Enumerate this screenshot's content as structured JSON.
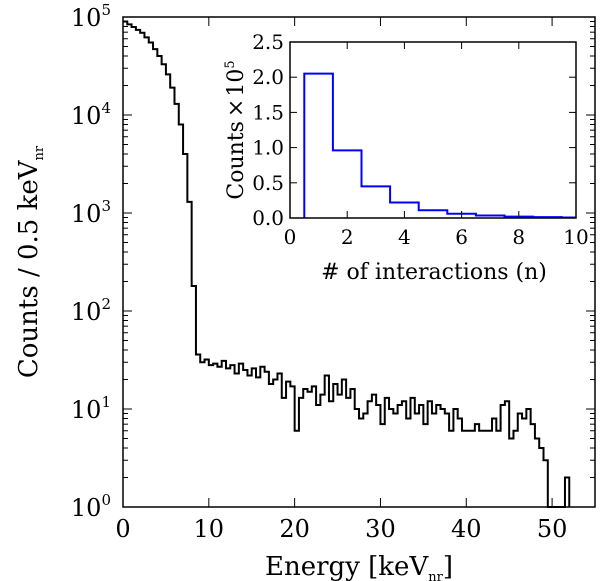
{
  "chart_data": [
    {
      "type": "step",
      "panel": "main",
      "xlabel": "Energy [keV",
      "xlabel_sub": "nr",
      "xlabel_suffix": "]",
      "ylabel": "Counts / 0.5 keV",
      "ylabel_sub": "nr",
      "xlim": [
        0,
        55
      ],
      "ylim": [
        1,
        100000
      ],
      "yscale": "log",
      "bin_width": 0.5,
      "x_ticks": [
        0,
        10,
        20,
        30,
        40,
        50
      ],
      "x_tick_labels": [
        "0",
        "10",
        "20",
        "30",
        "40",
        "50"
      ],
      "y_ticks": [
        1,
        10,
        100,
        1000,
        10000,
        100000
      ],
      "y_tick_base": "10",
      "y_tick_exponents": [
        "0",
        "1",
        "2",
        "3",
        "4",
        "5"
      ],
      "line_color": "#000000",
      "grid": false,
      "x_bin_edges": [
        0,
        0.5,
        1,
        1.5,
        2,
        2.5,
        3,
        3.5,
        4,
        4.5,
        5,
        5.5,
        6,
        6.5,
        7,
        7.5,
        8,
        8.5,
        9,
        9.5,
        10,
        10.5,
        11,
        11.5,
        12,
        12.5,
        13,
        13.5,
        14,
        14.5,
        15,
        15.5,
        16,
        16.5,
        17,
        17.5,
        18,
        18.5,
        19,
        19.5,
        20,
        20.5,
        21,
        21.5,
        22,
        22.5,
        23,
        23.5,
        24,
        24.5,
        25,
        25.5,
        26,
        26.5,
        27,
        27.5,
        28,
        28.5,
        29,
        29.5,
        30,
        30.5,
        31,
        31.5,
        32,
        32.5,
        33,
        33.5,
        34,
        34.5,
        35,
        35.5,
        36,
        36.5,
        37,
        37.5,
        38,
        38.5,
        39,
        39.5,
        40,
        40.5,
        41,
        41.5,
        42,
        42.5,
        43,
        43.5,
        44,
        44.5,
        45,
        45.5,
        46,
        46.5,
        47,
        47.5,
        48,
        48.5,
        49,
        49.5,
        50,
        50.5,
        51,
        51.5,
        52
      ],
      "values": [
        90000,
        84000,
        79000,
        74000,
        69000,
        62000,
        55000,
        47000,
        40000,
        33000,
        26000,
        19000,
        13000,
        8000,
        4000,
        1300,
        180,
        36,
        30,
        32,
        28,
        29,
        27,
        31,
        26,
        28,
        23,
        29,
        25,
        22,
        26,
        21,
        27,
        24,
        18,
        20,
        23,
        13,
        19,
        17,
        6,
        13,
        16,
        15,
        17,
        11,
        14,
        22,
        12,
        18,
        14,
        20,
        13,
        16,
        10,
        8,
        9,
        12,
        14,
        11,
        7,
        13,
        10,
        9,
        11,
        12,
        8,
        13,
        9,
        11,
        7,
        12,
        9,
        11,
        10,
        9,
        6,
        10,
        8,
        6,
        6,
        6,
        7,
        6,
        6,
        6,
        8,
        6,
        11,
        12,
        5,
        6,
        9,
        8,
        10,
        7,
        5,
        4,
        3,
        1,
        1,
        1,
        1,
        2
      ]
    },
    {
      "type": "step",
      "panel": "inset",
      "xlabel": "# of interactions (n)",
      "ylabel": "Counts",
      "ylabel_factor": "10",
      "ylabel_factor_exponent": "5",
      "xlim": [
        0,
        10
      ],
      "ylim": [
        0,
        2.5
      ],
      "x_ticks": [
        0,
        2,
        4,
        6,
        8,
        10
      ],
      "x_tick_labels": [
        "0",
        "2",
        "4",
        "6",
        "8",
        "10"
      ],
      "y_ticks": [
        0,
        0.5,
        1.0,
        1.5,
        2.0,
        2.5
      ],
      "y_tick_labels": [
        "0.0",
        "0.5",
        "1.0",
        "1.5",
        "2.0",
        "2.5"
      ],
      "line_color": "#0000ff",
      "grid": false,
      "x_bin_edges": [
        0.5,
        1.5,
        2.5,
        3.5,
        4.5,
        5.5,
        6.5,
        7.5,
        8.5,
        9.5,
        10.5
      ],
      "values": [
        2.05,
        0.96,
        0.45,
        0.22,
        0.11,
        0.06,
        0.035,
        0.02,
        0.012,
        0.008
      ]
    }
  ]
}
